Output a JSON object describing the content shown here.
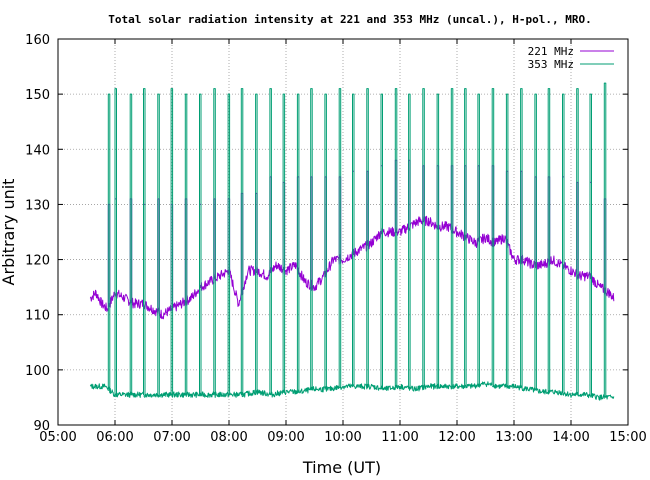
{
  "chart_data": {
    "type": "line",
    "title": "Total solar radiation intensity at 221 and 353 MHz (uncal.), H-pol., MRO.",
    "xlabel": "Time (UT)",
    "ylabel": "Arbitrary unit",
    "x_ticks": [
      "05:00",
      "06:00",
      "07:00",
      "08:00",
      "09:00",
      "10:00",
      "11:00",
      "12:00",
      "13:00",
      "14:00",
      "15:00"
    ],
    "xlim": [
      "05:00",
      "15:00"
    ],
    "ylim": [
      90,
      160
    ],
    "y_ticks": [
      90,
      100,
      110,
      120,
      130,
      140,
      150,
      160
    ],
    "grid": true,
    "legend_position": "top-right",
    "calibration_pulses": {
      "times": [
        "05:53",
        "06:00",
        "06:16",
        "06:30",
        "06:45",
        "06:59",
        "07:14",
        "07:29",
        "07:44",
        "07:59",
        "08:13",
        "08:28",
        "08:43",
        "08:57",
        "09:12",
        "09:26",
        "09:41",
        "09:56",
        "10:10",
        "10:25",
        "10:40",
        "10:55",
        "11:09",
        "11:24",
        "11:39",
        "11:54",
        "12:08",
        "12:22",
        "12:37",
        "12:52",
        "13:07",
        "13:22",
        "13:36",
        "13:51",
        "14:06",
        "14:20",
        "14:35"
      ],
      "peak_353": [
        150,
        151,
        150,
        151,
        150,
        151,
        150,
        150,
        151,
        150,
        151,
        150,
        151,
        150,
        150,
        151,
        150,
        151,
        150,
        151,
        150,
        151,
        150,
        151,
        150,
        151,
        151,
        150,
        151,
        150,
        151,
        150,
        151,
        150,
        151,
        150,
        152
      ],
      "peak_221": [
        130,
        131,
        131,
        130,
        131,
        130,
        131,
        130,
        131,
        131,
        132,
        132,
        135,
        134,
        135,
        135,
        135,
        135,
        136,
        136,
        137,
        138,
        138,
        137,
        137,
        137,
        137,
        137,
        137,
        136,
        136,
        135,
        135,
        135,
        134,
        134,
        131
      ]
    },
    "series": [
      {
        "name": "221 MHz",
        "color": "#9400d3",
        "x": [
          "05:34",
          "05:40",
          "05:46",
          "05:52",
          "06:00",
          "06:10",
          "06:20",
          "06:30",
          "06:40",
          "06:50",
          "07:00",
          "07:10",
          "07:20",
          "07:30",
          "07:40",
          "07:50",
          "08:00",
          "08:10",
          "08:20",
          "08:30",
          "08:40",
          "08:50",
          "09:00",
          "09:10",
          "09:20",
          "09:30",
          "09:40",
          "09:50",
          "10:00",
          "10:10",
          "10:20",
          "10:30",
          "10:40",
          "10:50",
          "11:00",
          "11:10",
          "11:20",
          "11:30",
          "11:40",
          "11:50",
          "12:00",
          "12:10",
          "12:20",
          "12:30",
          "12:40",
          "12:50",
          "13:00",
          "13:10",
          "13:20",
          "13:30",
          "13:40",
          "13:50",
          "14:00",
          "14:10",
          "14:20",
          "14:30",
          "14:40",
          "14:45"
        ],
        "y": [
          113,
          114,
          112,
          111,
          114,
          113,
          112,
          112,
          111,
          110,
          111,
          112,
          113,
          115,
          116,
          117,
          118,
          112,
          118,
          118,
          117,
          119,
          118,
          119,
          116,
          115,
          117,
          120,
          120,
          121,
          122,
          123,
          125,
          125,
          125,
          126,
          127,
          127,
          126,
          126,
          125,
          124,
          123,
          124,
          123,
          124,
          120,
          120,
          119,
          119,
          120,
          119,
          118,
          117,
          117,
          115,
          114,
          113
        ]
      },
      {
        "name": "353 MHz",
        "color": "#009e73",
        "x": [
          "05:34",
          "05:40",
          "05:50",
          "06:00",
          "06:15",
          "06:30",
          "06:45",
          "07:00",
          "07:15",
          "07:30",
          "07:45",
          "08:00",
          "08:15",
          "08:30",
          "08:45",
          "09:00",
          "09:15",
          "09:30",
          "09:45",
          "10:00",
          "10:15",
          "10:30",
          "10:45",
          "11:00",
          "11:15",
          "11:30",
          "11:45",
          "12:00",
          "12:15",
          "12:30",
          "12:45",
          "13:00",
          "13:15",
          "13:30",
          "13:45",
          "14:00",
          "14:15",
          "14:30",
          "14:40",
          "14:45"
        ],
        "y": [
          97,
          97,
          97,
          95.5,
          95.5,
          95.5,
          95.5,
          95.5,
          95.5,
          95.5,
          95.5,
          95.5,
          95.5,
          96,
          95.5,
          96,
          96,
          96.5,
          96.5,
          97,
          97,
          97,
          96.5,
          97,
          96.5,
          97,
          97,
          97,
          97,
          97.5,
          97,
          97,
          96.5,
          96,
          96,
          95.5,
          95.5,
          95,
          95,
          95
        ]
      }
    ]
  }
}
